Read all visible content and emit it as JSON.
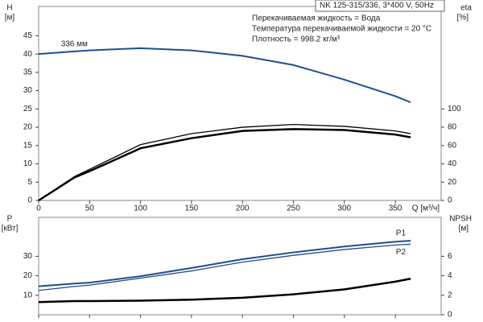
{
  "chart_data": [
    {
      "type": "line",
      "title": "NK 125-315/336, 3*400 V, 50Hz",
      "annotations": [
        "Перекачиваемая жидкость = Вода",
        "Температура перекачиваемой жидкости = 20 °C",
        "Плотность = 998.2 кг/м³"
      ],
      "ylabel": "H",
      "yunit": "[м]",
      "y2label": "eta",
      "y2unit": "[%]",
      "xlabel": "Q [м³/ч]",
      "x": [
        0,
        35,
        50,
        100,
        150,
        200,
        250,
        300,
        350,
        365
      ],
      "series": [
        {
          "name": "336 мм",
          "color": "#1f4e8c",
          "width": 2,
          "values": [
            40,
            40.7,
            41,
            41.6,
            41,
            39.5,
            37,
            33,
            28.5,
            26.8
          ]
        },
        {
          "color": "#000000",
          "width": 1.3,
          "axis": "y2",
          "values": [
            0,
            26,
            34,
            61,
            73,
            80,
            83,
            81,
            76,
            73
          ]
        },
        {
          "color": "#000000",
          "width": 2.5,
          "axis": "y2",
          "values": [
            0,
            25,
            32,
            57,
            68,
            76,
            78,
            77,
            72,
            69
          ]
        }
      ],
      "xlim": [
        0,
        395
      ],
      "xticks": [
        0,
        50,
        100,
        150,
        200,
        250,
        300,
        350
      ],
      "ylim": [
        0,
        53
      ],
      "yticks": [
        0,
        5,
        10,
        15,
        20,
        25,
        30,
        35,
        40,
        45
      ],
      "y2lim": [
        0,
        212
      ],
      "y2ticks": [
        0,
        20,
        40,
        60,
        80,
        100
      ]
    },
    {
      "type": "line",
      "ylabel": "P",
      "yunit": "[кВт]",
      "y2label": "NPSH",
      "y2unit": "[м]",
      "x": [
        0,
        35,
        50,
        100,
        150,
        200,
        250,
        300,
        350,
        365
      ],
      "series": [
        {
          "name": "P1",
          "color": "#1f4e8c",
          "width": 2,
          "values": [
            14.6,
            16,
            16.5,
            19.8,
            24,
            28.5,
            32,
            35,
            37.5,
            38
          ]
        },
        {
          "name": "P2",
          "color": "#1f4e8c",
          "width": 1.3,
          "values": [
            12.5,
            14.5,
            15.2,
            18.8,
            22.5,
            27,
            30.5,
            33.5,
            35.8,
            36.2
          ]
        },
        {
          "color": "#000000",
          "width": 2.5,
          "axis": "y2",
          "values": [
            1.3,
            1.4,
            1.4,
            1.45,
            1.55,
            1.75,
            2.1,
            2.6,
            3.4,
            3.7
          ]
        }
      ],
      "xlim": [
        0,
        395
      ],
      "xticks": [
        0,
        50,
        100,
        150,
        200,
        250,
        300,
        350
      ],
      "ylim": [
        0,
        50
      ],
      "yticks": [
        10,
        20,
        30
      ],
      "y2lim": [
        0,
        10
      ],
      "y2ticks": [
        0,
        2,
        4,
        6
      ]
    }
  ]
}
